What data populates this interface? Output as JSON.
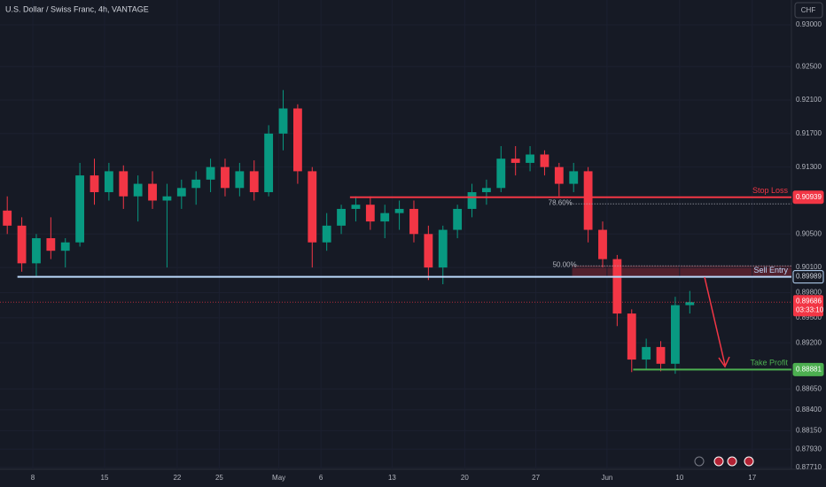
{
  "chart_data": {
    "type": "candlestick",
    "title": "U.S. Dollar / Swiss Franc, 4h, VANTAGE",
    "currency": "CHF",
    "up_color": "#089981",
    "down_color": "#f23645",
    "x": [
      0.5,
      1.5,
      2.5,
      3.5,
      4.5,
      5.5,
      6.5,
      7.5,
      8.5,
      9.5,
      10.5,
      11.5,
      12.5,
      13.5,
      14.5,
      15.5,
      16.5,
      17.5,
      18.5,
      19.5,
      20.5,
      21.5,
      22.5,
      23.5,
      24.5,
      25.5,
      26.5,
      27.5,
      28.5,
      29.5,
      30.5,
      31.5,
      32.5,
      33.5,
      34.5,
      35.5,
      36.5,
      37.5,
      38.5,
      39.5,
      40.5,
      41.5,
      42.5,
      43.5,
      44.5,
      45.5,
      46.5,
      47.5
    ],
    "open": [
      0.9078,
      0.906,
      0.9015,
      0.9045,
      0.903,
      0.904,
      0.912,
      0.91,
      0.9125,
      0.9095,
      0.911,
      0.909,
      0.9095,
      0.9105,
      0.9115,
      0.913,
      0.9105,
      0.9125,
      0.91,
      0.917,
      0.92,
      0.9125,
      0.904,
      0.906,
      0.908,
      0.9085,
      0.9065,
      0.9075,
      0.908,
      0.905,
      0.901,
      0.9055,
      0.908,
      0.91,
      0.9105,
      0.914,
      0.9135,
      0.9145,
      0.913,
      0.911,
      0.9125,
      0.9055,
      0.902,
      0.8955,
      0.89,
      0.8915,
      0.8895,
      0.8965
    ],
    "high": [
      0.9095,
      0.907,
      0.905,
      0.907,
      0.9045,
      0.9135,
      0.914,
      0.9135,
      0.9132,
      0.912,
      0.9125,
      0.911,
      0.9115,
      0.9125,
      0.914,
      0.914,
      0.9135,
      0.9138,
      0.918,
      0.9222,
      0.9205,
      0.913,
      0.9075,
      0.9085,
      0.9095,
      0.9095,
      0.9085,
      0.909,
      0.909,
      0.906,
      0.906,
      0.9085,
      0.911,
      0.9115,
      0.9155,
      0.9155,
      0.9155,
      0.915,
      0.9135,
      0.9135,
      0.913,
      0.9065,
      0.9025,
      0.896,
      0.8925,
      0.8922,
      0.8975,
      0.8982
    ],
    "low": [
      0.905,
      0.9005,
      0.9,
      0.902,
      0.901,
      0.9035,
      0.9085,
      0.909,
      0.908,
      0.9065,
      0.908,
      0.901,
      0.908,
      0.9085,
      0.91,
      0.9095,
      0.9095,
      0.909,
      0.9095,
      0.915,
      0.911,
      0.901,
      0.903,
      0.905,
      0.9065,
      0.9055,
      0.9045,
      0.9055,
      0.904,
      0.8995,
      0.899,
      0.9045,
      0.907,
      0.9085,
      0.91,
      0.912,
      0.9125,
      0.912,
      0.9095,
      0.91,
      0.904,
      0.901,
      0.894,
      0.8885,
      0.8888,
      0.8886,
      0.8883,
      0.8955
    ],
    "close": [
      0.906,
      0.9015,
      0.9045,
      0.903,
      0.904,
      0.912,
      0.91,
      0.9125,
      0.9095,
      0.911,
      0.909,
      0.9095,
      0.9105,
      0.9115,
      0.913,
      0.9105,
      0.9125,
      0.91,
      0.917,
      0.92,
      0.9125,
      0.904,
      0.906,
      0.908,
      0.9085,
      0.9065,
      0.9075,
      0.908,
      0.905,
      0.901,
      0.9055,
      0.908,
      0.91,
      0.9105,
      0.914,
      0.9135,
      0.9145,
      0.913,
      0.911,
      0.9125,
      0.9055,
      0.902,
      0.8955,
      0.89,
      0.8915,
      0.8895,
      0.8965,
      0.89686
    ],
    "xlim": [
      0,
      54.5
    ],
    "xticks": [
      {
        "value": 2.26,
        "label": "8"
      },
      {
        "value": 7.2,
        "label": "15"
      },
      {
        "value": 12.2,
        "label": "22"
      },
      {
        "value": 15.1,
        "label": "25"
      },
      {
        "value": 19.2,
        "label": "May"
      },
      {
        "value": 22.1,
        "label": "6"
      },
      {
        "value": 27,
        "label": "13"
      },
      {
        "value": 32,
        "label": "20"
      },
      {
        "value": 36.9,
        "label": "27"
      },
      {
        "value": 41.8,
        "label": "Jun"
      },
      {
        "value": 46.8,
        "label": "10"
      },
      {
        "value": 51.8,
        "label": "17"
      }
    ],
    "ylim": [
      0.87689,
      0.93296
    ],
    "yticks": [
      {
        "value": 0.93,
        "label": "0.93000"
      },
      {
        "value": 0.925,
        "label": "0.92500"
      },
      {
        "value": 0.921,
        "label": "0.92100"
      },
      {
        "value": 0.917,
        "label": "0.91700"
      },
      {
        "value": 0.913,
        "label": "0.91300"
      },
      {
        "value": 0.905,
        "label": "0.90500"
      },
      {
        "value": 0.901,
        "label": "0.90100"
      },
      {
        "value": 0.898,
        "label": "0.89800"
      },
      {
        "value": 0.895,
        "label": "0.89500"
      },
      {
        "value": 0.892,
        "label": "0.89200"
      },
      {
        "value": 0.8865,
        "label": "0.88650"
      },
      {
        "value": 0.884,
        "label": "0.88400"
      },
      {
        "value": 0.8815,
        "label": "0.88150"
      },
      {
        "value": 0.8793,
        "label": "0.87930"
      },
      {
        "value": 0.8771,
        "label": "0.87710"
      }
    ],
    "levels": [
      {
        "name": "Stop Loss",
        "value": 0.90939,
        "from": 24.1,
        "color": "#f23645"
      },
      {
        "name": "Sell Entry",
        "value": 0.89989,
        "from": 1.2,
        "color": "#bbd9fb"
      },
      {
        "name": "Take Profit",
        "value": 0.88881,
        "from": 43.6,
        "color": "#4caf50"
      }
    ],
    "fib_levels": [
      {
        "label": "78.60%",
        "value": 0.9086,
        "from": 39.1
      },
      {
        "label": "50.00%",
        "value": 0.9012,
        "from": 39.4
      }
    ],
    "current_price": 0.89686,
    "countdown": "03:33:10"
  }
}
